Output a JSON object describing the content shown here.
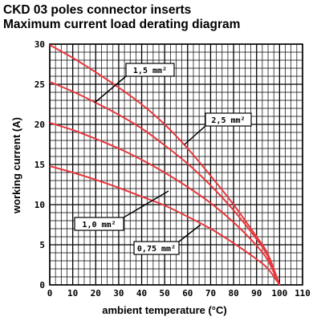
{
  "title_line1": "CKD 03 poles connector inserts",
  "title_line2": "Maximum current load derating diagram",
  "chart_data": {
    "type": "line",
    "xlabel": "ambient temperature (°C)",
    "ylabel": "working current (A)",
    "xlim": [
      0,
      110
    ],
    "ylim": [
      0,
      30
    ],
    "xticks": [
      0,
      10,
      20,
      30,
      40,
      50,
      60,
      70,
      80,
      90,
      100,
      110
    ],
    "yticks": [
      0,
      5,
      10,
      15,
      20,
      25,
      30
    ],
    "grid": true,
    "line_color": "#e8373d",
    "series": [
      {
        "name": "1,5 mm²",
        "points": [
          [
            0,
            29.9
          ],
          [
            10,
            28.3
          ],
          [
            20,
            26.5
          ],
          [
            30,
            24.6
          ],
          [
            40,
            22.5
          ],
          [
            50,
            20.0
          ],
          [
            60,
            17.0
          ],
          [
            70,
            13.6
          ],
          [
            80,
            10.0
          ],
          [
            90,
            6.0
          ],
          [
            95,
            3.8
          ],
          [
            100,
            0
          ]
        ]
      },
      {
        "name": "2,5 mm²",
        "points": [
          [
            0,
            25.3
          ],
          [
            10,
            24.1
          ],
          [
            20,
            22.7
          ],
          [
            30,
            21.2
          ],
          [
            40,
            19.5
          ],
          [
            50,
            17.4
          ],
          [
            60,
            15.1
          ],
          [
            70,
            12.4
          ],
          [
            80,
            9.3
          ],
          [
            90,
            5.7
          ],
          [
            95,
            3.5
          ],
          [
            100,
            0
          ]
        ]
      },
      {
        "name": "1,0 mm²",
        "points": [
          [
            0,
            20.2
          ],
          [
            10,
            19.3
          ],
          [
            20,
            18.2
          ],
          [
            30,
            17.0
          ],
          [
            40,
            15.6
          ],
          [
            50,
            14.0
          ],
          [
            60,
            12.2
          ],
          [
            70,
            10.2
          ],
          [
            80,
            7.8
          ],
          [
            90,
            4.9
          ],
          [
            95,
            3.0
          ],
          [
            100,
            0
          ]
        ]
      },
      {
        "name": "0,75 mm²",
        "points": [
          [
            0,
            14.8
          ],
          [
            10,
            14.0
          ],
          [
            20,
            13.1
          ],
          [
            30,
            12.1
          ],
          [
            40,
            11.0
          ],
          [
            50,
            9.9
          ],
          [
            60,
            8.5
          ],
          [
            70,
            7.0
          ],
          [
            80,
            5.2
          ],
          [
            90,
            3.2
          ],
          [
            95,
            2.0
          ],
          [
            100,
            0
          ]
        ]
      }
    ],
    "annotations": [
      {
        "text": "1,5 mm²",
        "series": "1,5 mm²"
      },
      {
        "text": "2,5 mm²",
        "series": "2,5 mm²"
      },
      {
        "text": "1,0 mm²",
        "series": "1,0 mm²"
      },
      {
        "text": "0,75 mm²",
        "series": "0,75 mm²"
      }
    ]
  }
}
